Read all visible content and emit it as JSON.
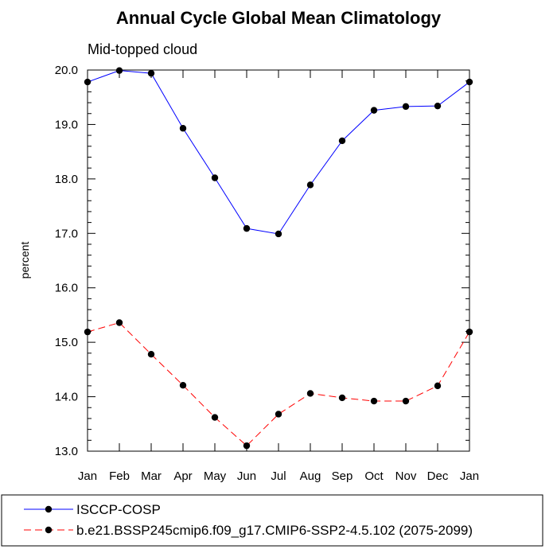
{
  "chart_data": {
    "type": "line",
    "title": "Annual Cycle Global Mean Climatology",
    "subtitle": "Mid-topped cloud",
    "xlabel": "",
    "ylabel": "percent",
    "categories": [
      "Jan",
      "Feb",
      "Mar",
      "Apr",
      "May",
      "Jun",
      "Jul",
      "Aug",
      "Sep",
      "Oct",
      "Nov",
      "Dec",
      "Jan"
    ],
    "ylim": [
      13.0,
      20.0
    ],
    "yticks": [
      "13.0",
      "14.0",
      "15.0",
      "16.0",
      "17.0",
      "18.0",
      "19.0",
      "20.0"
    ],
    "grid": false,
    "legend_position": "bottom-left",
    "series": [
      {
        "name": "ISCCP-COSP",
        "color": "#0000ff",
        "dash": "solid",
        "marker": "filled-circle",
        "values": [
          19.78,
          19.99,
          19.94,
          18.93,
          18.02,
          17.09,
          16.99,
          17.89,
          18.7,
          19.26,
          19.33,
          19.34,
          19.78
        ]
      },
      {
        "name": "b.e21.BSSP245cmip6.f09_g17.CMIP6-SSP2-4.5.102 (2075-2099)",
        "color": "#ff0000",
        "dash": "dashed",
        "marker": "filled-circle",
        "values": [
          15.19,
          15.36,
          14.78,
          14.21,
          13.62,
          13.1,
          13.68,
          14.06,
          13.98,
          13.92,
          13.92,
          14.2,
          15.19
        ]
      }
    ]
  }
}
